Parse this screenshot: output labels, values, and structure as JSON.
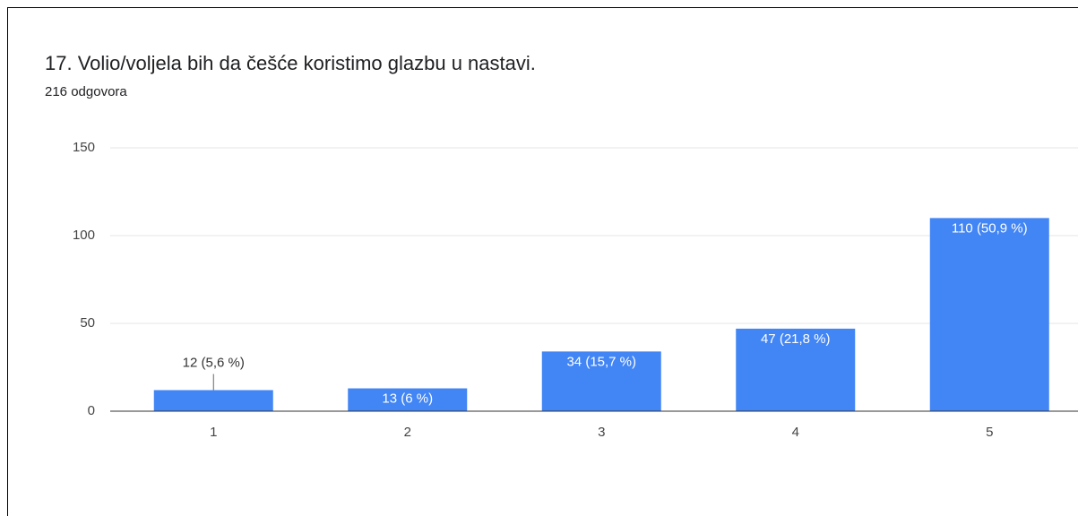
{
  "chart_data": {
    "type": "bar",
    "title": "17. Volio/voljela bih da češće koristimo glazbu u nastavi.",
    "subtitle": "216 odgovora",
    "categories": [
      "1",
      "2",
      "3",
      "4",
      "5"
    ],
    "values": [
      12,
      13,
      34,
      47,
      110
    ],
    "value_labels": [
      "12 (5,6 %)",
      "13 (6 %)",
      "34 (15,7 %)",
      "47 (21,8 %)",
      "110 (50,9 %)"
    ],
    "color": "#4285f4",
    "ylim": [
      0,
      150
    ],
    "yticks": [
      0,
      50,
      100,
      150
    ],
    "grid": true
  }
}
